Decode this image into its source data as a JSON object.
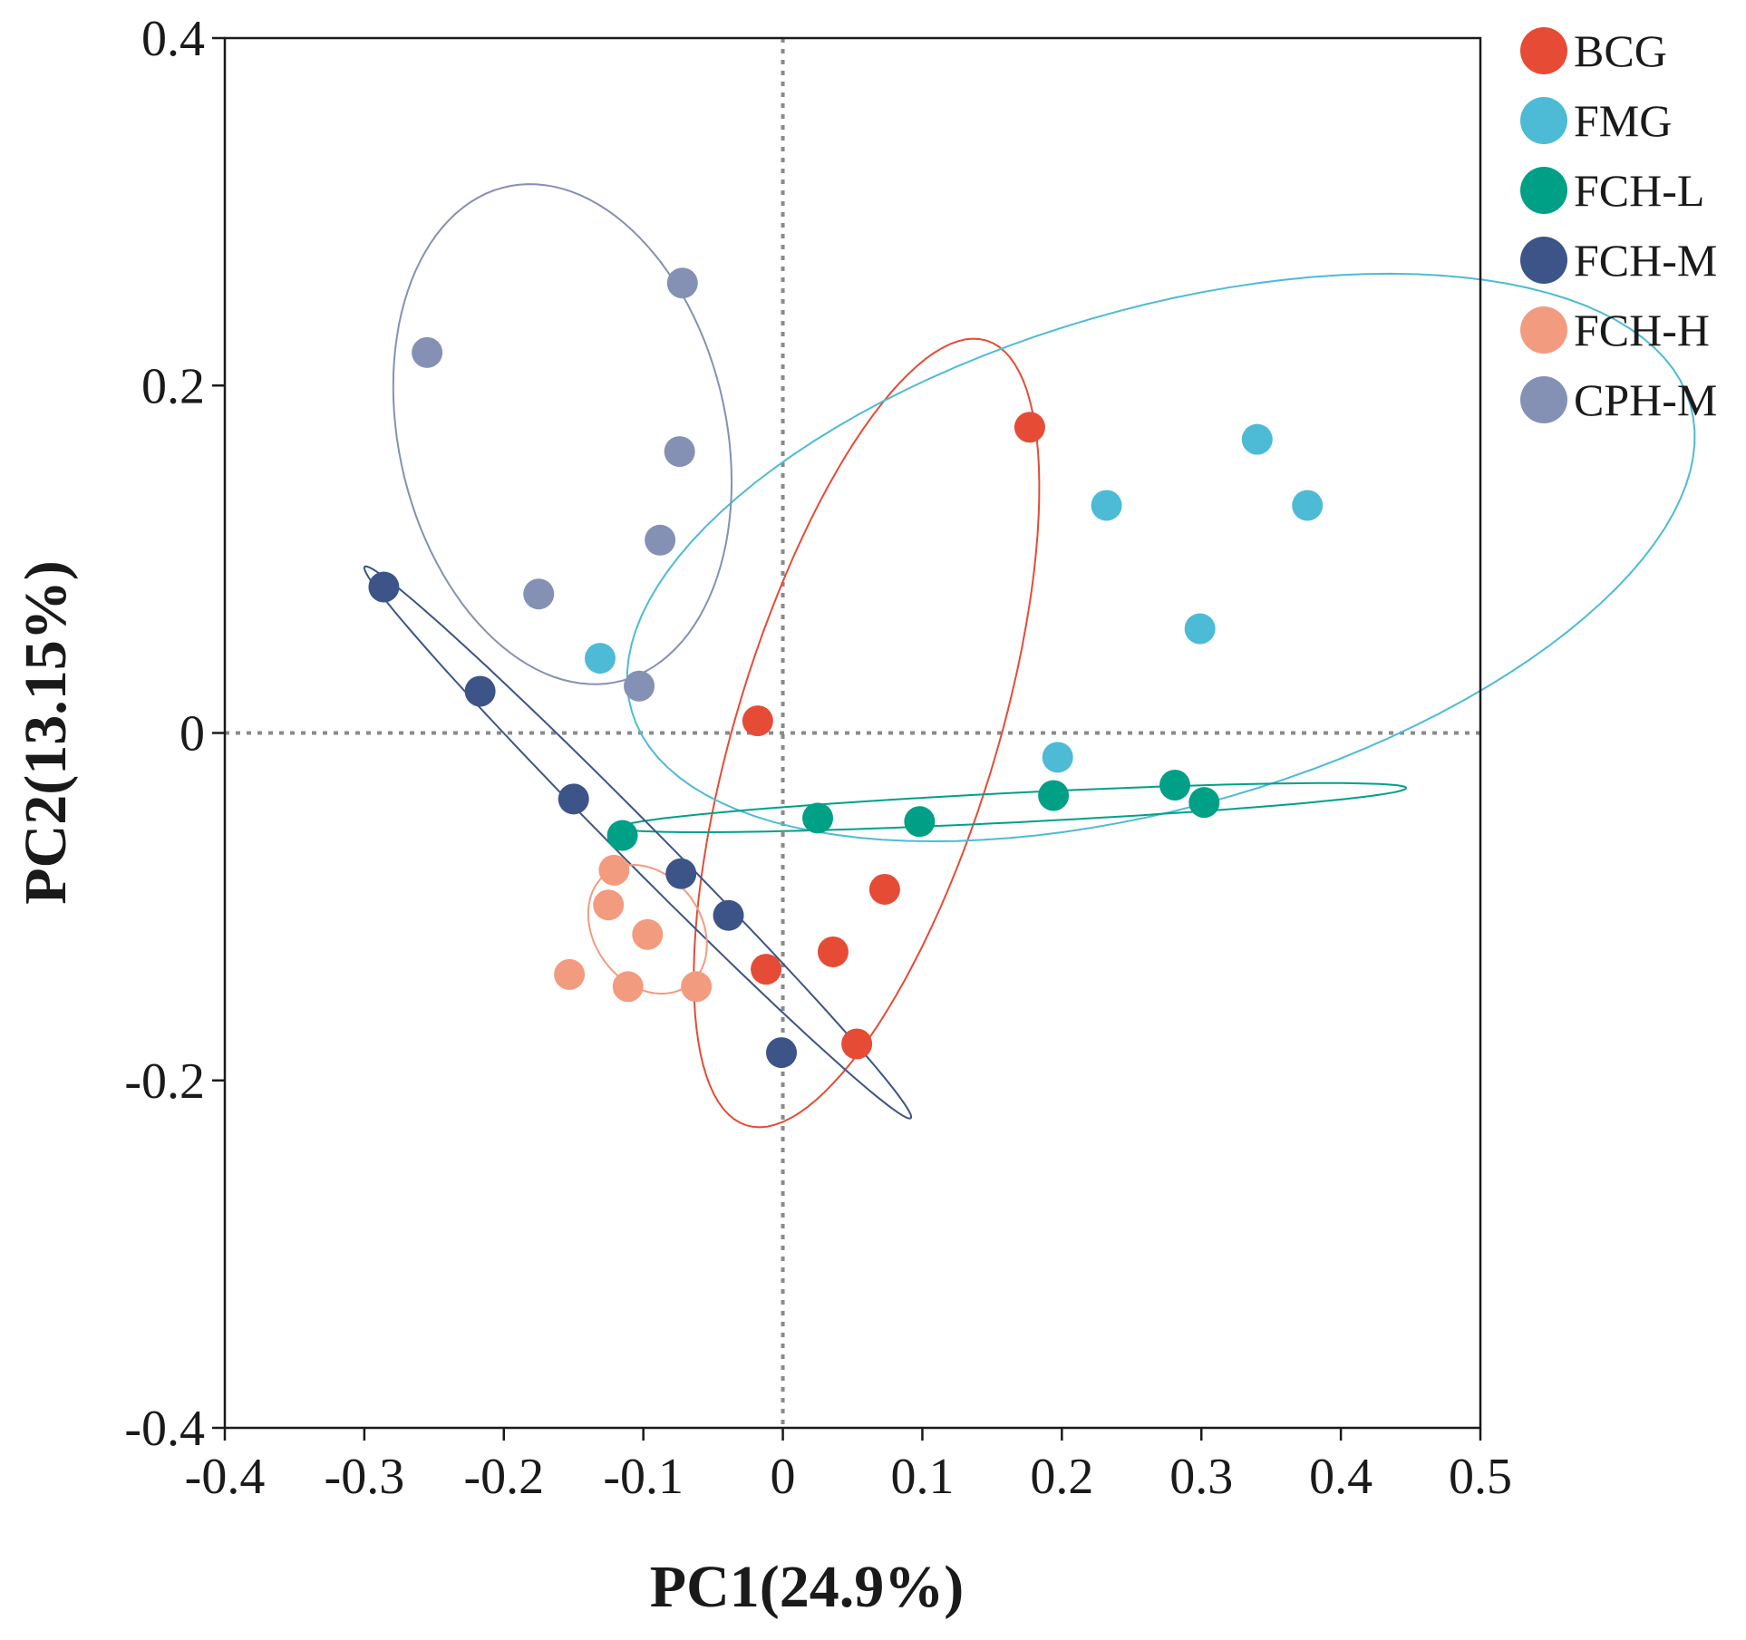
{
  "chart_data": {
    "type": "scatter",
    "title": "",
    "xlabel": "PC1(24.9%)",
    "ylabel": "PC2(13.15%)",
    "xlim": [
      -0.4,
      0.5
    ],
    "ylim": [
      -0.4,
      0.4
    ],
    "x_ticks": [
      "-0.4",
      "-0.3",
      "-0.2",
      "-0.1",
      "0",
      "0.1",
      "0.2",
      "0.3",
      "0.4",
      "0.5"
    ],
    "y_ticks": [
      "0.4",
      "0.2",
      "0",
      "-0.2",
      "-0.4"
    ],
    "grid": false,
    "reference_lines": [
      {
        "axis": "x",
        "value": 0,
        "style": "dotted"
      },
      {
        "axis": "y",
        "value": 0,
        "style": "dotted"
      }
    ],
    "legend_position": "right of plot, top",
    "series": [
      {
        "name": "BCG",
        "color": "#e64b35",
        "x": [
          0.177,
          -0.018,
          0.073,
          0.036,
          -0.012,
          0.053
        ],
        "y": [
          0.176,
          0.007,
          -0.09,
          -0.126,
          -0.136,
          -0.179
        ],
        "ellipse": {
          "cx": 0.06,
          "cy": 0.0,
          "rx": 0.242,
          "ry": 0.091,
          "angle_deg": 68
        }
      },
      {
        "name": "FMG",
        "color": "#4dbbd5",
        "x": [
          0.34,
          0.232,
          0.376,
          0.299,
          -0.131,
          0.197
        ],
        "y": [
          0.169,
          0.131,
          0.131,
          0.06,
          0.043,
          -0.014
        ],
        "ellipse": {
          "cx": 0.271,
          "cy": 0.101,
          "rx": 0.39,
          "ry": 0.145,
          "angle_deg": 12
        }
      },
      {
        "name": "FCH-L",
        "color": "#00a087",
        "x": [
          -0.115,
          0.025,
          0.098,
          0.194,
          0.281,
          0.302
        ],
        "y": [
          -0.059,
          -0.049,
          -0.051,
          -0.036,
          -0.03,
          -0.04
        ],
        "ellipse": {
          "cx": 0.165,
          "cy": -0.043,
          "rx": 0.282,
          "ry": 0.0085,
          "angle_deg": 2.3
        }
      },
      {
        "name": "FCH-M",
        "color": "#3c5488",
        "x": [
          -0.286,
          -0.217,
          -0.15,
          -0.073,
          -0.039,
          -0.001
        ],
        "y": [
          0.084,
          0.024,
          -0.038,
          -0.081,
          -0.105,
          -0.184
        ],
        "ellipse": {
          "cx": -0.104,
          "cy": -0.063,
          "rx": 0.252,
          "ry": 0.013,
          "angle_deg": -39
        }
      },
      {
        "name": "FCH-H",
        "color": "#f39b7f",
        "x": [
          -0.121,
          -0.125,
          -0.097,
          -0.153,
          -0.111,
          -0.062
        ],
        "y": [
          -0.079,
          -0.099,
          -0.116,
          -0.139,
          -0.146,
          -0.146
        ],
        "ellipse": {
          "cx": -0.097,
          "cy": -0.113,
          "rx": 0.045,
          "ry": 0.034,
          "angle_deg": -30
        }
      },
      {
        "name": "CPH-M",
        "color": "#8491b4",
        "x": [
          -0.072,
          -0.255,
          -0.074,
          -0.088,
          -0.175,
          -0.103
        ],
        "y": [
          0.259,
          0.219,
          0.162,
          0.111,
          0.08,
          0.027
        ],
        "ellipse": {
          "cx": -0.158,
          "cy": 0.172,
          "rx": 0.149,
          "ry": 0.115,
          "angle_deg": -66
        }
      }
    ]
  }
}
